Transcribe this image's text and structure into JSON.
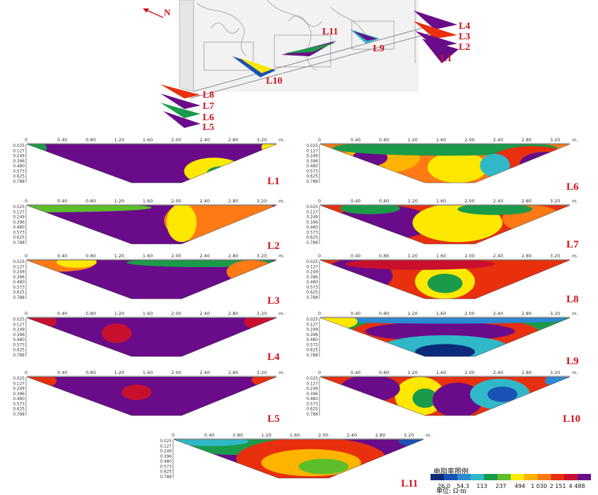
{
  "north_label": "N",
  "location_labels": [
    "L4",
    "L3",
    "L2",
    "L1",
    "L11",
    "L9",
    "L10",
    "L8",
    "L7",
    "L6",
    "L5"
  ],
  "x_ticks": [
    "0",
    "0.40",
    "0.80",
    "1.20",
    "1.60",
    "2.00",
    "2.40",
    "2.80",
    "3.20"
  ],
  "x_unit": "m.",
  "depth_ticks": [
    "0.025",
    "0.127",
    "0.249",
    "0.396",
    "0.480",
    "0.573",
    "0.625",
    "0.788"
  ],
  "panels": [
    {
      "label": "L1",
      "base": "#6a0c8a"
    },
    {
      "label": "L6",
      "base": "#ff7a14"
    },
    {
      "label": "L2",
      "base": "#6a0c8a"
    },
    {
      "label": "L7",
      "base": "#e8300e"
    },
    {
      "label": "L3",
      "base": "#6a0c8a"
    },
    {
      "label": "L8",
      "base": "#e8300e"
    },
    {
      "label": "L4",
      "base": "#6a0c8a"
    },
    {
      "label": "L9",
      "base": "#1b9b4a"
    },
    {
      "label": "L5",
      "base": "#6a0c8a"
    },
    {
      "label": "L10",
      "base": "#e8300e"
    },
    {
      "label": "L11",
      "base": "#6a0c8a"
    }
  ],
  "legend": {
    "title": "电阻率图例",
    "unit": "单位: Ω·m",
    "values": [
      "26.0",
      "54.3",
      "113",
      "237",
      "494",
      "1 030",
      "2 151",
      "4 488"
    ],
    "colors": [
      "#0a2a7a",
      "#1a52b4",
      "#2a8ad4",
      "#30b8c8",
      "#1b9b4a",
      "#5cbf2a",
      "#ffe800",
      "#ffb400",
      "#ff7a14",
      "#e8300e",
      "#c8102e",
      "#6a0c8a"
    ]
  }
}
